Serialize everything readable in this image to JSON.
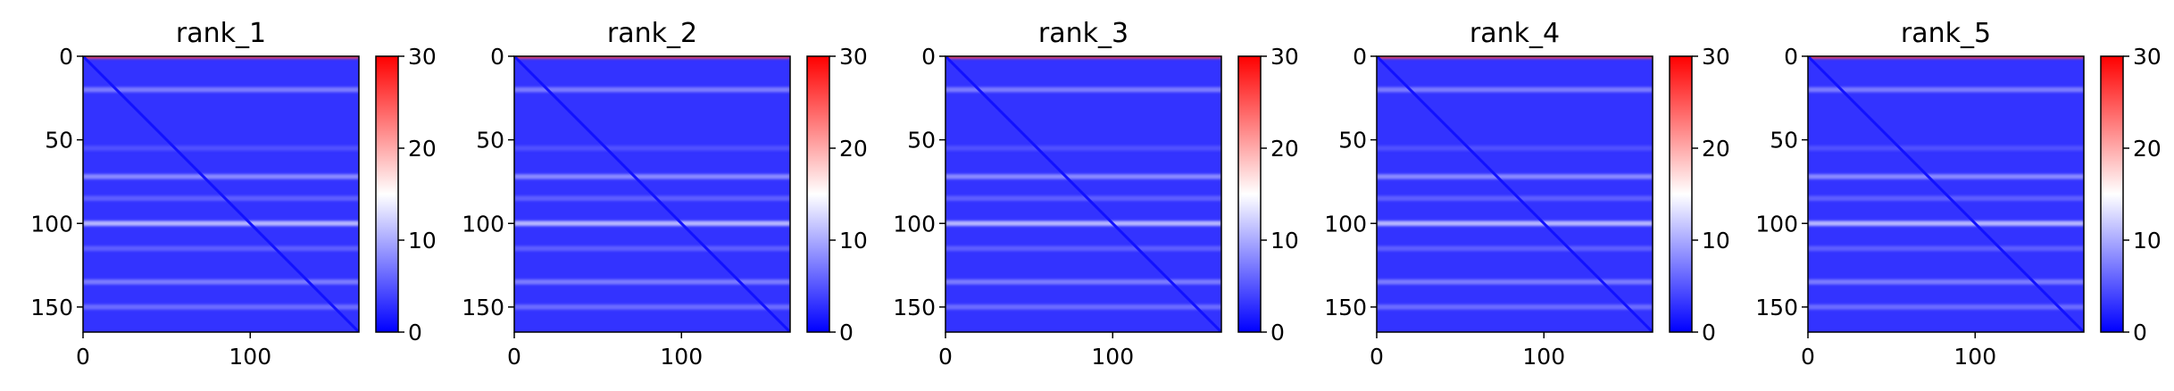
{
  "chart_data": {
    "type": "heatmap",
    "x_extent": [
      0,
      165
    ],
    "y_extent": [
      0,
      165
    ],
    "y_inverted": true,
    "x_ticks": [
      0,
      100
    ],
    "y_ticks": [
      0,
      50,
      100,
      150
    ],
    "colorbar": {
      "range": [
        0,
        30
      ],
      "ticks": [
        0,
        10,
        20,
        30
      ],
      "colormap": "bwr",
      "colors": {
        "low": "#0000ff",
        "mid": "#ffffff",
        "high": "#ff0000"
      }
    },
    "panels": [
      {
        "title": "rank_1"
      },
      {
        "title": "rank_2"
      },
      {
        "title": "rank_3"
      },
      {
        "title": "rank_4"
      },
      {
        "title": "rank_5"
      }
    ],
    "pattern": {
      "background_value": 3,
      "diagonal_value": 1,
      "bright_rows": [
        {
          "y": 0,
          "value": 26
        },
        {
          "y": 20,
          "value": 8
        },
        {
          "y": 55,
          "value": 5
        },
        {
          "y": 72,
          "value": 9
        },
        {
          "y": 85,
          "value": 6
        },
        {
          "y": 100,
          "value": 12
        },
        {
          "y": 115,
          "value": 6
        },
        {
          "y": 135,
          "value": 8
        },
        {
          "y": 150,
          "value": 7
        }
      ]
    }
  }
}
